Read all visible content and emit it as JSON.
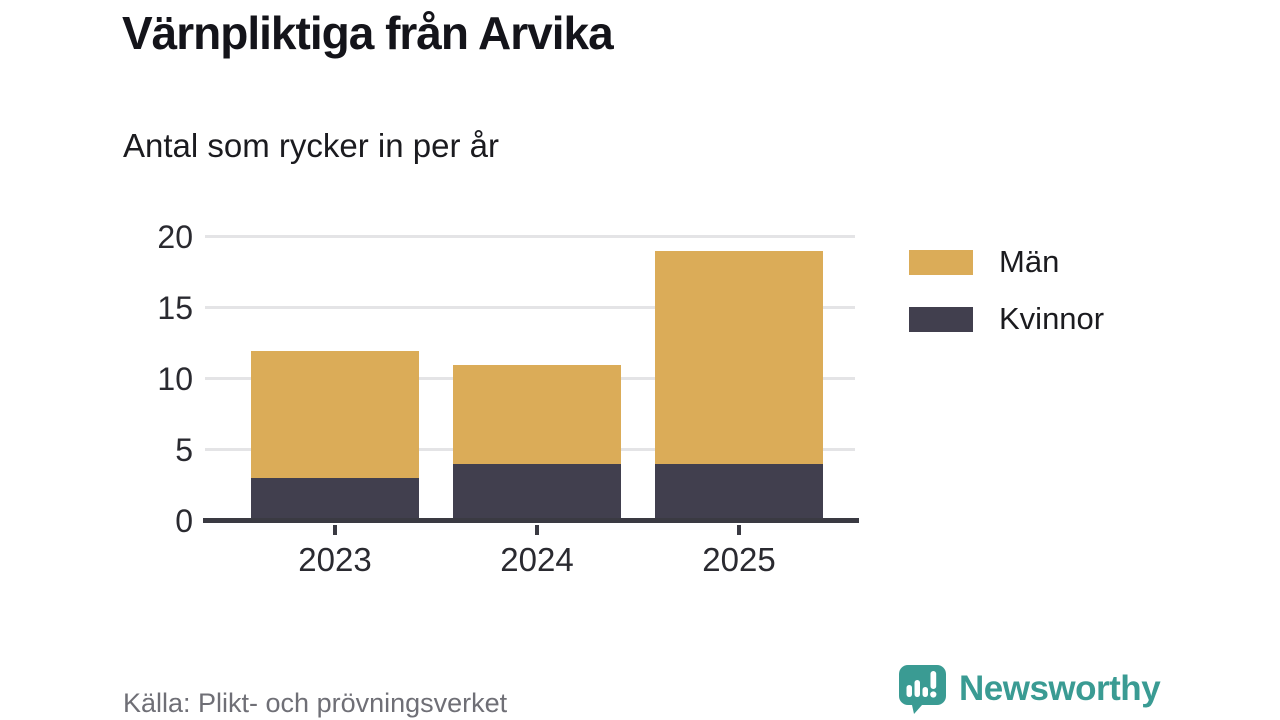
{
  "header": {
    "title": "Värnpliktiga från Arvika",
    "subtitle": "Antal som rycker in per år"
  },
  "chart_data": {
    "type": "bar",
    "stacked": true,
    "title": "Värnpliktiga från Arvika",
    "subtitle": "Antal som rycker in per år",
    "categories": [
      "2023",
      "2024",
      "2025"
    ],
    "series": [
      {
        "name": "Män",
        "color": "#dbac58",
        "values": [
          9,
          7,
          15
        ]
      },
      {
        "name": "Kvinnor",
        "color": "#413f4e",
        "values": [
          3,
          4,
          4
        ]
      }
    ],
    "totals": [
      12,
      11,
      19
    ],
    "ylim": [
      0,
      20
    ],
    "yticks": [
      0,
      5,
      10,
      15,
      20
    ],
    "grid": true,
    "legend_position": "right",
    "xlabel": "",
    "ylabel": ""
  },
  "footer": {
    "source": "Källa: Plikt- och prövningsverket",
    "brand": "Newsworthy"
  },
  "colors": {
    "men": "#dbac58",
    "women": "#413f4e",
    "axis": "#3a3a42",
    "gridline": "#e4e4e6",
    "text": "#1b1b1f",
    "source_text": "#6f6f76",
    "brand_teal": "#3a9b93",
    "background": "#ffffff"
  }
}
